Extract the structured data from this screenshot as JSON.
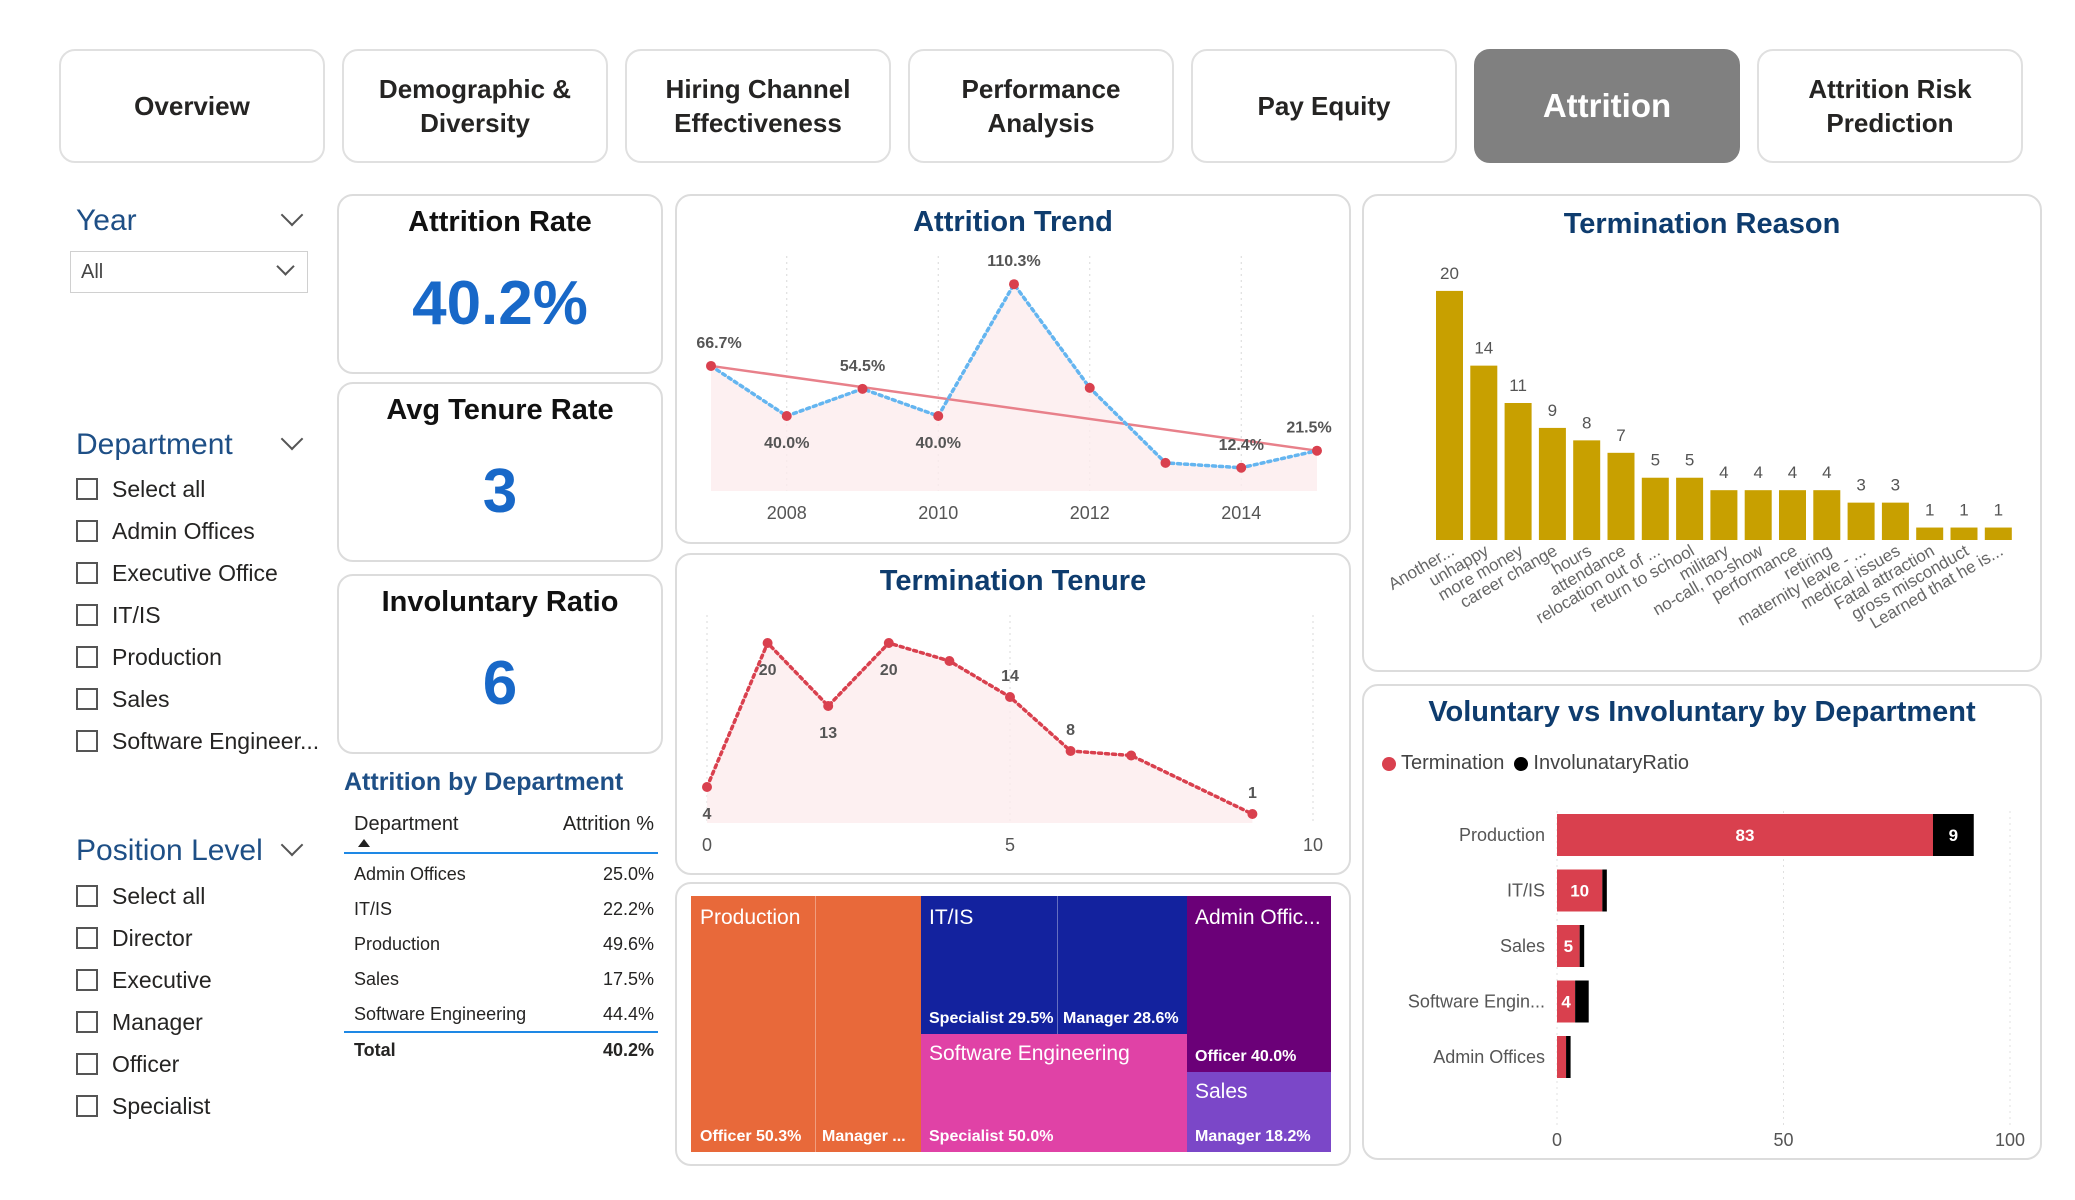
{
  "tabs": [
    {
      "label": "Overview",
      "active": false
    },
    {
      "label": "Demographic & Diversity",
      "active": false
    },
    {
      "label": "Hiring Channel Effectiveness",
      "active": false
    },
    {
      "label": "Performance Analysis",
      "active": false
    },
    {
      "label": "Pay Equity",
      "active": false
    },
    {
      "label": "Attrition",
      "active": true
    },
    {
      "label": "Attrition Risk Prediction",
      "active": false
    }
  ],
  "filters": {
    "year": {
      "title": "Year",
      "selected": "All"
    },
    "department": {
      "title": "Department",
      "items": [
        "Select all",
        "Admin Offices",
        "Executive Office",
        "IT/IS",
        "Production",
        "Sales",
        "Software Engineer..."
      ]
    },
    "position_level": {
      "title": "Position Level",
      "items": [
        "Select all",
        "Director",
        "Executive",
        "Manager",
        "Officer",
        "Specialist"
      ]
    }
  },
  "kpis": {
    "attrition_rate": {
      "title": "Attrition Rate",
      "value": "40.2%"
    },
    "avg_tenure": {
      "title": "Avg Tenure Rate",
      "value": "3"
    },
    "involuntary_ratio": {
      "title": "Involuntary Ratio",
      "value": "6"
    }
  },
  "dept_table": {
    "title": "Attrition by Department",
    "headers": [
      "Department",
      "Attrition %"
    ],
    "rows": [
      [
        "Admin Offices",
        "25.0%"
      ],
      [
        "IT/IS",
        "22.2%"
      ],
      [
        "Production",
        "49.6%"
      ],
      [
        "Sales",
        "17.5%"
      ],
      [
        "Software Engineering",
        "44.4%"
      ]
    ],
    "total": [
      "Total",
      "40.2%"
    ]
  },
  "treemap": {
    "groups": [
      {
        "name": "Production",
        "color": "#e8693a",
        "items": [
          {
            "label": "Officer 50.3%"
          },
          {
            "label": "Manager ..."
          }
        ]
      },
      {
        "name": "IT/IS",
        "color": "#13229e",
        "items": [
          {
            "label": "Specialist 29.5%"
          },
          {
            "label": "Manager 28.6%"
          }
        ]
      },
      {
        "name": "Admin Offic...",
        "color": "#6b0078",
        "items": [
          {
            "label": "Officer 40.0%"
          }
        ]
      },
      {
        "name": "Software Engineering",
        "color": "#e042a6",
        "items": [
          {
            "label": "Specialist 50.0%"
          }
        ]
      },
      {
        "name": "Sales",
        "color": "#7b47c8",
        "items": [
          {
            "label": "Manager 18.2%"
          }
        ]
      }
    ]
  },
  "colors": {
    "accent_blue": "#1868c8",
    "title_navy": "#0e3c6e",
    "bar_gold": "#c8a000",
    "red": "#d9404e",
    "trend_dotted": "#64b5f0",
    "trendline": "#e8808a"
  },
  "chart_data": [
    {
      "id": "attrition_trend",
      "type": "line",
      "title": "Attrition Trend",
      "x": [
        2007,
        2008,
        2009,
        2010,
        2011,
        2012,
        2013,
        2014,
        2015
      ],
      "series": [
        {
          "values": [
            66.7,
            40.0,
            54.5,
            40.0,
            110.3,
            55.0,
            15.0,
            12.4,
            21.5
          ],
          "labels": [
            "66.7%",
            "40.0%",
            "54.5%",
            "40.0%",
            "110.3%",
            "",
            "",
            "12.4%",
            "21.5%"
          ]
        }
      ],
      "trendline": [
        66.7,
        21.5
      ],
      "xticks": [
        "2008",
        "2010",
        "2012",
        "2014"
      ],
      "ylim": [
        0,
        120
      ]
    },
    {
      "id": "termination_tenure",
      "type": "line",
      "title": "Termination Tenure",
      "x": [
        0,
        1,
        2,
        3,
        4,
        5,
        6,
        7,
        9
      ],
      "series": [
        {
          "values": [
            4,
            20,
            13,
            20,
            18,
            14,
            8,
            7.5,
            1
          ],
          "labels": [
            "4",
            "20",
            "13",
            "20",
            "",
            "14",
            "8",
            "",
            "1"
          ]
        }
      ],
      "xticks": [
        "0",
        "5",
        "10"
      ],
      "xlim": [
        0,
        10
      ],
      "ylim": [
        0,
        22
      ]
    },
    {
      "id": "termination_reason",
      "type": "bar",
      "title": "Termination Reason",
      "categories": [
        "Another...",
        "unhappy",
        "more money",
        "career change",
        "hours",
        "attendance",
        "relocation out of ...",
        "return to school",
        "military",
        "no-call, no-show",
        "performance",
        "retiring",
        "maternity leave - ...",
        "medical issues",
        "Fatal attraction",
        "gross misconduct",
        "Learned that he is..."
      ],
      "values": [
        20,
        14,
        11,
        9,
        8,
        7,
        5,
        5,
        4,
        4,
        4,
        4,
        3,
        3,
        1,
        1,
        1
      ],
      "ylim": [
        0,
        22
      ]
    },
    {
      "id": "voluntary_vs_involuntary",
      "type": "bar",
      "orientation": "horizontal",
      "stacked": true,
      "title": "Voluntary vs Involuntary by Department",
      "categories": [
        "Production",
        "IT/IS",
        "Sales",
        "Software Engin...",
        "Admin Offices"
      ],
      "series": [
        {
          "name": "Termination",
          "values": [
            83,
            10,
            5,
            4,
            2
          ],
          "labels": [
            "83",
            "10",
            "5",
            "4",
            ""
          ]
        },
        {
          "name": "InvolunataryRatio",
          "values": [
            9,
            1,
            1,
            3,
            1
          ],
          "labels": [
            "9",
            "",
            "",
            "",
            ""
          ]
        }
      ],
      "xticks": [
        "0",
        "50",
        "100"
      ],
      "xlim": [
        0,
        100
      ],
      "legend": "top-left"
    }
  ]
}
